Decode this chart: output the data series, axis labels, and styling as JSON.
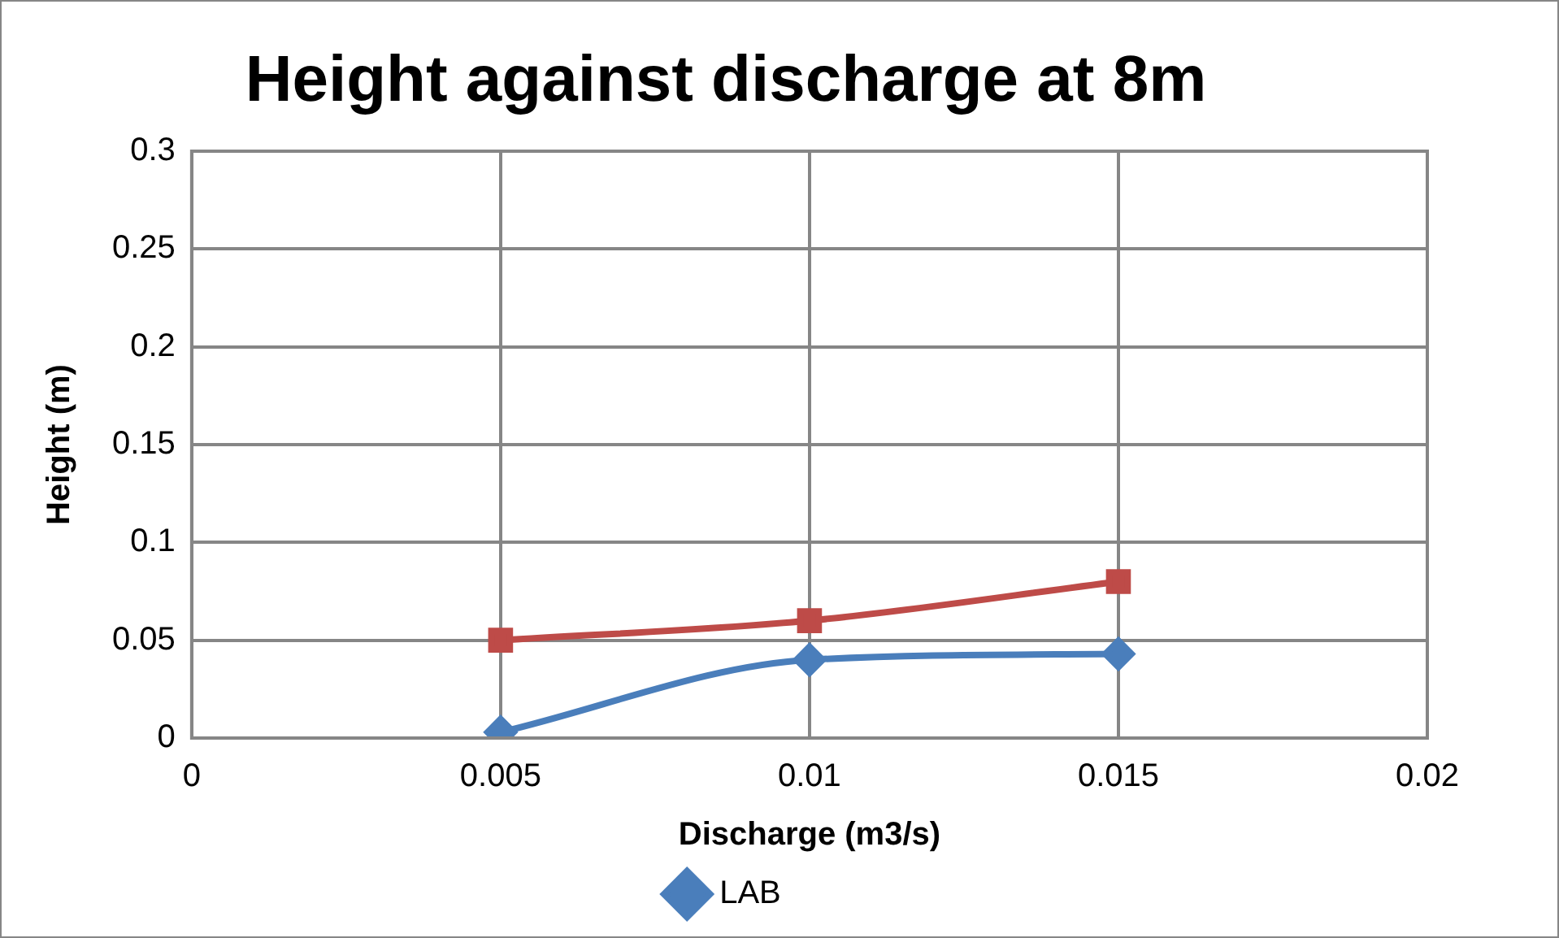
{
  "chart_data": {
    "type": "line",
    "title": "Height against discharge at 8m",
    "xlabel": "Discharge (m3/s)",
    "ylabel": "Height (m)",
    "x": [
      0.005,
      0.01,
      0.015
    ],
    "series": [
      {
        "name": "LAB",
        "color": "#4a7ebb",
        "values": [
          0.003,
          0.04,
          0.043
        ],
        "marker": "diamond"
      },
      {
        "color": "#be4b48",
        "values": [
          0.05,
          0.06,
          0.08
        ],
        "marker": "square"
      }
    ],
    "xlim": [
      0,
      0.02
    ],
    "xticks": [
      0,
      0.005,
      0.01,
      0.015,
      0.02
    ],
    "ylim": [
      0,
      0.3
    ],
    "yticks": [
      0,
      0.05,
      0.1,
      0.15,
      0.2,
      0.25,
      0.3
    ],
    "grid": true,
    "legend": "bottom"
  }
}
